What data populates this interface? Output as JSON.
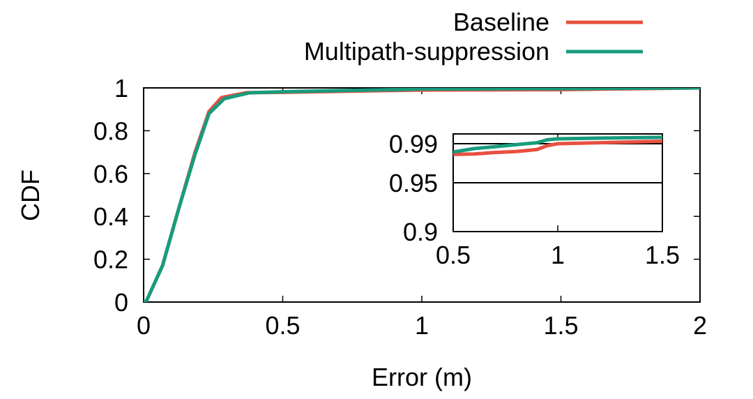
{
  "chart_data": [
    {
      "type": "line",
      "xlabel": "Error (m)",
      "ylabel": "CDF",
      "xlim": [
        0,
        2
      ],
      "ylim": [
        0,
        1
      ],
      "xticks": [
        "0",
        "0.5",
        "1",
        "1.5",
        "2"
      ],
      "yticks": [
        "0",
        "0.2",
        "0.4",
        "0.6",
        "0.8",
        "1"
      ],
      "legend": "top-right-outside",
      "grid": false,
      "series": [
        {
          "name": "Baseline",
          "color": "#e8503f",
          "x": [
            0,
            0.01,
            0.068,
            0.127,
            0.185,
            0.235,
            0.28,
            0.37,
            0.5,
            0.95,
            1.0,
            1.5,
            2.0
          ],
          "y": [
            0,
            0.005,
            0.17,
            0.44,
            0.7,
            0.89,
            0.955,
            0.978,
            0.979,
            0.989,
            0.99,
            0.992,
            1.0
          ]
        },
        {
          "name": "Multipath-suppression",
          "color": "#179c7d",
          "x": [
            0,
            0.01,
            0.068,
            0.127,
            0.185,
            0.235,
            0.29,
            0.38,
            0.5,
            0.95,
            1.0,
            1.5,
            2.0
          ],
          "y": [
            0,
            0.005,
            0.17,
            0.44,
            0.69,
            0.88,
            0.95,
            0.977,
            0.982,
            0.993,
            0.995,
            0.9964,
            1.0
          ]
        }
      ]
    },
    {
      "type": "line",
      "inset": true,
      "xlim": [
        0.5,
        1.5
      ],
      "ylim": [
        0.9,
        1.0
      ],
      "xticks": [
        "0.5",
        "1",
        "1.5"
      ],
      "yticks": [
        "0.9",
        "0.95",
        "0.99"
      ],
      "hlines": [
        0.95,
        0.99
      ],
      "series": [
        {
          "color": "#e8503f",
          "x": [
            0.5,
            0.6,
            0.7,
            0.8,
            0.9,
            0.95,
            1.0,
            1.2,
            1.5
          ],
          "y": [
            0.979,
            0.9795,
            0.981,
            0.982,
            0.984,
            0.988,
            0.99,
            0.991,
            0.9925
          ]
        },
        {
          "color": "#179c7d",
          "x": [
            0.5,
            0.6,
            0.7,
            0.8,
            0.9,
            0.95,
            1.0,
            1.2,
            1.5
          ],
          "y": [
            0.9815,
            0.985,
            0.987,
            0.989,
            0.991,
            0.994,
            0.995,
            0.9957,
            0.9965
          ]
        }
      ]
    }
  ]
}
